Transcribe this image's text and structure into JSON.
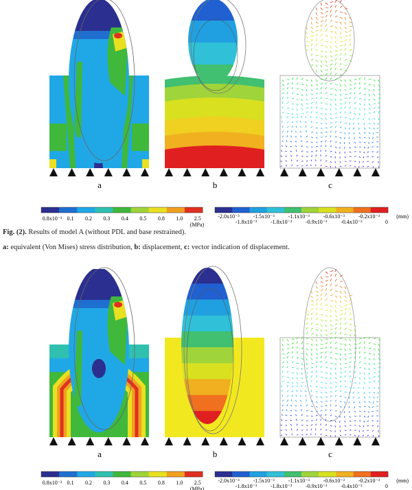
{
  "figures": [
    {
      "panels": [
        {
          "label": "a"
        },
        {
          "label": "b"
        },
        {
          "label": "c"
        }
      ],
      "stress_scale": {
        "labels": [
          "0.8x10⁻³",
          "0.1",
          "0.2",
          "0.3",
          "0.4",
          "0.5",
          "0.8",
          "1.0",
          "2.5"
        ],
        "unit": "(MPa)"
      },
      "displacement_scale": {
        "labels": [
          "-2.0x10⁻³",
          "-1.8x10⁻³",
          "-1.5x10⁻³",
          "-1.8x10⁻³",
          "-1.1x10⁻³",
          "-0.9x10⁻³",
          "-0.6x10⁻³",
          "-0.4x10⁻³",
          "-0.2x10⁻³",
          "0"
        ],
        "unit": "(mm)"
      }
    },
    {
      "panels": [
        {
          "label": "a"
        },
        {
          "label": "b"
        },
        {
          "label": "c"
        }
      ],
      "stress_scale": {
        "labels": [
          "0.8x10⁻³",
          "0.1",
          "0.2",
          "0.3",
          "0.4",
          "0.5",
          "0.8",
          "1.0",
          "2.5"
        ],
        "unit": "(MPa)"
      },
      "displacement_scale": {
        "labels": [
          "-2.0x10⁻³",
          "-1.8x10⁻³",
          "-1.5x10⁻³",
          "-1.8x10⁻³",
          "-1.1x10⁻³",
          "-0.9x10⁻³",
          "-0.6x10⁻³",
          "-0.4x10⁻³",
          "-0.2x10⁻³",
          "0"
        ],
        "unit": "(mm)"
      }
    }
  ],
  "caption": {
    "label": "Fig. (2).",
    "title": "Results of model A (without PDL and base restrained).",
    "legend": [
      {
        "key": "a:",
        "text": "equivalent (Von Mises) stress distribution,"
      },
      {
        "key": "b:",
        "text": "displacement,"
      },
      {
        "key": "c:",
        "text": "vector indication of displacement."
      }
    ]
  }
}
